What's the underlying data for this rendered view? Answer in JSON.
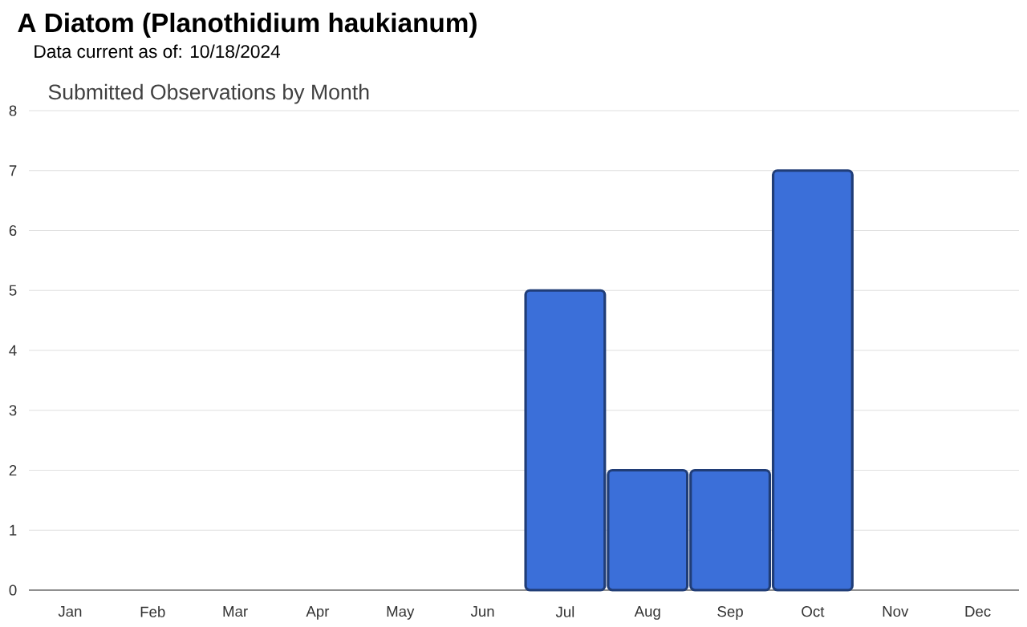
{
  "chart_data": {
    "type": "bar",
    "title": "A Diatom   (Planothidium haukianum)",
    "subtitle": "Data current as of: 10/18/2024",
    "annotations": [
      "Submitted Observations by Month"
    ],
    "categories": [
      "Jan",
      "Feb",
      "Mar",
      "Apr",
      "May",
      "Jun",
      "Jul",
      "Aug",
      "Sep",
      "Oct",
      "Nov",
      "Dec"
    ],
    "values": [
      0,
      0,
      0,
      0,
      0,
      0,
      5,
      2,
      2,
      7,
      0,
      0
    ],
    "color": "#3b6fd9",
    "ylim": [
      0,
      8
    ],
    "yticks": [
      0,
      1,
      2,
      3,
      4,
      5,
      6,
      7,
      8
    ],
    "grid": "y"
  }
}
